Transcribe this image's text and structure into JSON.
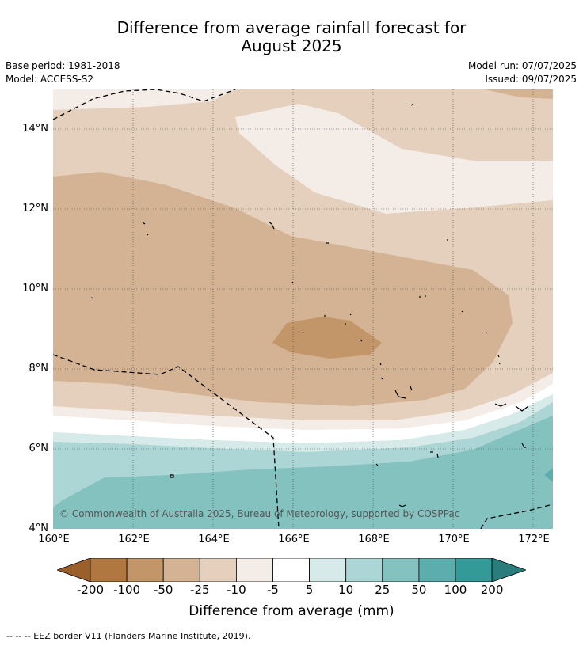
{
  "title_line1": "Difference from average rainfall forecast for",
  "title_line2": "August 2025",
  "left_meta": {
    "base_period": "Base period: 1981-2018",
    "model": "Model: ACCESS-S2"
  },
  "right_meta": {
    "model_run": "Model run: 07/07/2025",
    "issued": "Issued: 09/07/2025"
  },
  "copyright": "© Commonwealth of Australia 2025, Bureau of Meteorology, supported by COSPPac",
  "lat_ticks": [
    "14°N",
    "12°N",
    "10°N",
    "8°N",
    "6°N",
    "4°N"
  ],
  "lon_ticks": [
    "160°E",
    "162°E",
    "164°E",
    "166°E",
    "168°E",
    "170°E",
    "172°E"
  ],
  "colorbar": {
    "title": "Difference from average (mm)",
    "labels": [
      "-200",
      "-100",
      "-50",
      "-25",
      "-10",
      "-5",
      "5",
      "10",
      "25",
      "50",
      "100",
      "200"
    ],
    "colors": [
      "#9b5f2b",
      "#b07840",
      "#c29668",
      "#d3b393",
      "#e4d0bd",
      "#f4ece6",
      "#ffffff",
      "#d5eae9",
      "#acd6d5",
      "#84c2c0",
      "#5caeac",
      "#339a98",
      "#2b7d7b"
    ]
  },
  "footer": "-- -- -- EEZ border V11 (Flanders Marine Institute, 2019)."
}
